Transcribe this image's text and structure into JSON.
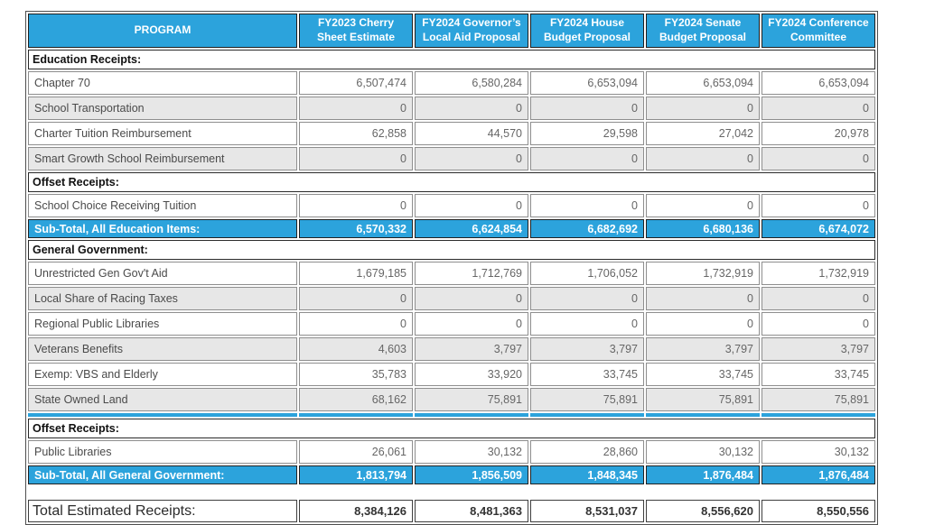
{
  "colors": {
    "accent_blue": "#2ca3dc",
    "row_shade": "#e7e7e7"
  },
  "table": {
    "columns": [
      "PROGRAM",
      "FY2023 Cherry Sheet Estimate",
      "FY2024 Governor’s Local Aid Proposal",
      "FY2024 House Budget Proposal",
      "FY2024 Senate Budget Proposal",
      "FY2024 Conference Committee"
    ],
    "rows": [
      {
        "type": "section",
        "label": "Education Receipts:"
      },
      {
        "type": "data",
        "shaded": false,
        "label": "Chapter 70",
        "values": [
          "6,507,474",
          "6,580,284",
          "6,653,094",
          "6,653,094",
          "6,653,094"
        ]
      },
      {
        "type": "data",
        "shaded": true,
        "label": "School Transportation",
        "values": [
          "0",
          "0",
          "0",
          "0",
          "0"
        ]
      },
      {
        "type": "data",
        "shaded": false,
        "label": "Charter Tuition Reimbursement",
        "values": [
          "62,858",
          "44,570",
          "29,598",
          "27,042",
          "20,978"
        ]
      },
      {
        "type": "data",
        "shaded": true,
        "label": "Smart Growth School Reimbursement",
        "values": [
          "0",
          "0",
          "0",
          "0",
          "0"
        ]
      },
      {
        "type": "section",
        "label": "Offset Receipts:"
      },
      {
        "type": "data",
        "shaded": false,
        "label": "School Choice Receiving Tuition",
        "values": [
          "0",
          "0",
          "0",
          "0",
          "0"
        ]
      },
      {
        "type": "subtotal",
        "label": "Sub-Total, All Education Items:",
        "values": [
          "6,570,332",
          "6,624,854",
          "6,682,692",
          "6,680,136",
          "6,674,072"
        ]
      },
      {
        "type": "section",
        "label": "General Government:"
      },
      {
        "type": "data",
        "shaded": false,
        "label": "Unrestricted Gen Gov't Aid",
        "values": [
          "1,679,185",
          "1,712,769",
          "1,706,052",
          "1,732,919",
          "1,732,919"
        ]
      },
      {
        "type": "data",
        "shaded": true,
        "label": "Local Share of Racing Taxes",
        "values": [
          "0",
          "0",
          "0",
          "0",
          "0"
        ]
      },
      {
        "type": "data",
        "shaded": false,
        "label": "Regional Public Libraries",
        "values": [
          "0",
          "0",
          "0",
          "0",
          "0"
        ]
      },
      {
        "type": "data",
        "shaded": true,
        "label": "Veterans Benefits",
        "values": [
          "4,603",
          "3,797",
          "3,797",
          "3,797",
          "3,797"
        ]
      },
      {
        "type": "data",
        "shaded": false,
        "label": "Exemp: VBS and Elderly",
        "values": [
          "35,783",
          "33,920",
          "33,745",
          "33,745",
          "33,745"
        ]
      },
      {
        "type": "data",
        "shaded": true,
        "label": "State Owned Land",
        "values": [
          "68,162",
          "75,891",
          "75,891",
          "75,891",
          "75,891"
        ]
      },
      {
        "type": "stripe"
      },
      {
        "type": "section",
        "label": "Offset Receipts:"
      },
      {
        "type": "data",
        "shaded": false,
        "label": "Public Libraries",
        "values": [
          "26,061",
          "30,132",
          "28,860",
          "30,132",
          "30,132"
        ]
      },
      {
        "type": "subtotal",
        "label": "Sub-Total, All General Government:",
        "values": [
          "1,813,794",
          "1,856,509",
          "1,848,345",
          "1,876,484",
          "1,876,484"
        ]
      },
      {
        "type": "spacer"
      },
      {
        "type": "total",
        "label": "Total Estimated Receipts:",
        "values": [
          "8,384,126",
          "8,481,363",
          "8,531,037",
          "8,556,620",
          "8,550,556"
        ]
      }
    ]
  }
}
